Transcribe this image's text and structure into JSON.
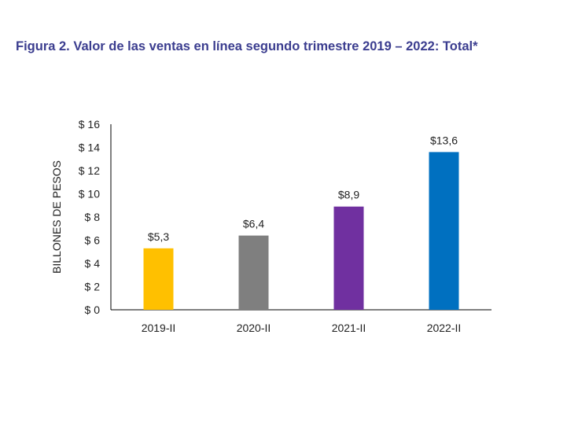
{
  "chart_data": {
    "type": "bar",
    "title": "Figura 2. Valor de las ventas en línea segundo trimestre 2019 – 2022: Total*",
    "xlabel": "",
    "ylabel": "BILLONES DE PESOS",
    "categories": [
      "2019-II",
      "2020-II",
      "2021-II",
      "2022-II"
    ],
    "values": [
      5.3,
      6.4,
      8.9,
      13.6
    ],
    "data_labels": [
      "$5,3",
      "$6,4",
      "$8,9",
      "$13,6"
    ],
    "colors": [
      "#ffc000",
      "#7f7f7f",
      "#7030a0",
      "#0070c0"
    ],
    "ylim": [
      0,
      16
    ],
    "yticks": [
      0,
      2,
      4,
      6,
      8,
      10,
      12,
      14,
      16
    ],
    "ytick_labels": [
      "$ 0",
      "$ 2",
      "$ 4",
      "$ 6",
      "$ 8",
      "$ 10",
      "$ 12",
      "$ 14",
      "$ 16"
    ],
    "grid": false,
    "legend": "none"
  }
}
